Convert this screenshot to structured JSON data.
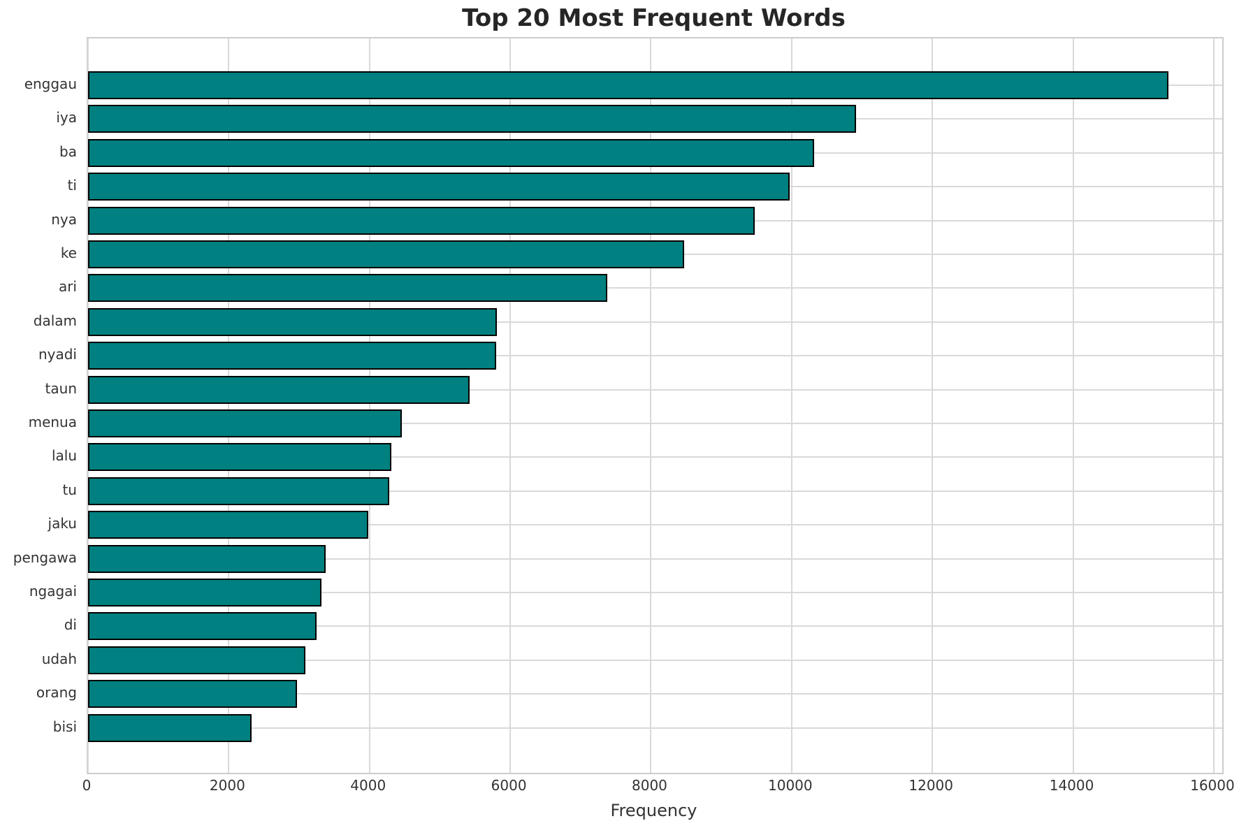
{
  "chart_data": {
    "type": "bar",
    "orientation": "horizontal",
    "title": "Top 20 Most Frequent Words",
    "xlabel": "Frequency",
    "ylabel": "",
    "categories": [
      "enggau",
      "iya",
      "ba",
      "ti",
      "nya",
      "ke",
      "ari",
      "dalam",
      "nyadi",
      "taun",
      "menua",
      "lalu",
      "tu",
      "jaku",
      "pengawa",
      "ngagai",
      "di",
      "udah",
      "orang",
      "bisi"
    ],
    "values": [
      15360,
      10920,
      10320,
      9970,
      9480,
      8470,
      7380,
      5810,
      5800,
      5420,
      4460,
      4310,
      4280,
      3980,
      3380,
      3320,
      3250,
      3090,
      2970,
      2320
    ],
    "xlim": [
      0,
      16120
    ],
    "xticks": [
      0,
      2000,
      4000,
      6000,
      8000,
      10000,
      12000,
      14000,
      16000
    ],
    "grid": "both",
    "legend": "none",
    "colors": {
      "bar_fill": "#008080",
      "bar_edge": "#000000",
      "gridline": "#d9d9d9",
      "spine": "#cccccc",
      "tick_text": "#333333",
      "title_text": "#262626",
      "background": "#ffffff"
    }
  }
}
